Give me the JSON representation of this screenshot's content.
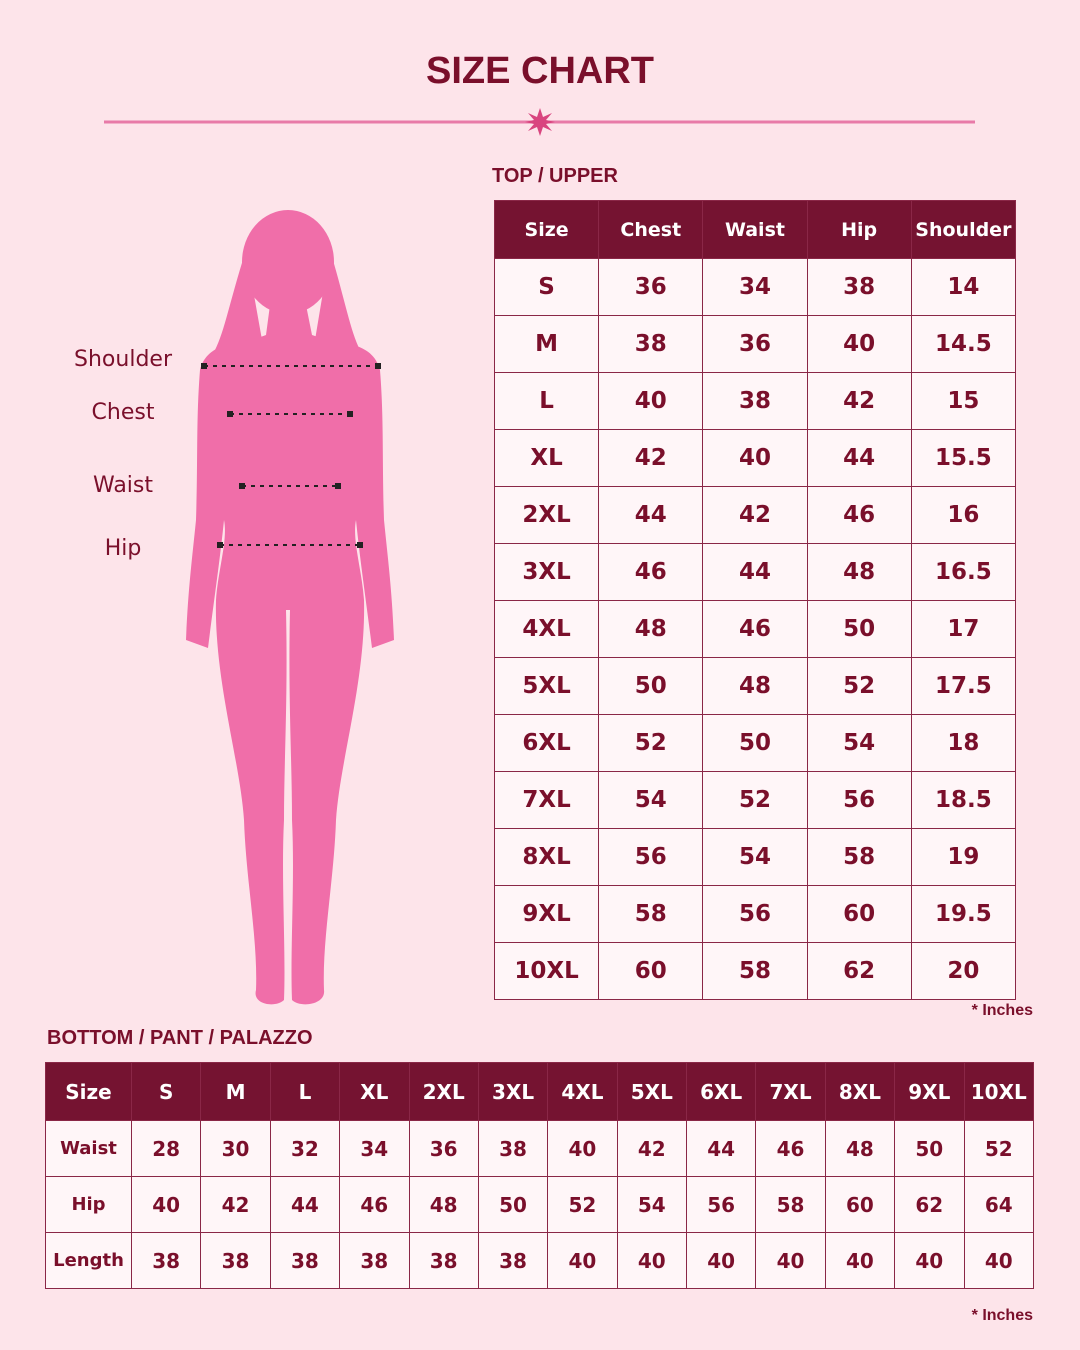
{
  "header": {
    "title": "SIZE CHART"
  },
  "figure": {
    "labels": [
      "Shoulder",
      "Chest",
      "Waist",
      "Hip"
    ]
  },
  "top": {
    "title": "TOP / UPPER",
    "columns": [
      "Size",
      "Chest",
      "Waist",
      "Hip",
      "Shoulder"
    ],
    "rows": [
      [
        "S",
        36,
        34,
        38,
        14
      ],
      [
        "M",
        38,
        36,
        40,
        14.5
      ],
      [
        "L",
        40,
        38,
        42,
        15
      ],
      [
        "XL",
        42,
        40,
        44,
        15.5
      ],
      [
        "2XL",
        44,
        42,
        46,
        16
      ],
      [
        "3XL",
        46,
        44,
        48,
        16.5
      ],
      [
        "4XL",
        48,
        46,
        50,
        17
      ],
      [
        "5XL",
        50,
        48,
        52,
        17.5
      ],
      [
        "6XL",
        52,
        50,
        54,
        18
      ],
      [
        "7XL",
        54,
        52,
        56,
        18.5
      ],
      [
        "8XL",
        56,
        54,
        58,
        19
      ],
      [
        "9XL",
        58,
        56,
        60,
        19.5
      ],
      [
        "10XL",
        60,
        58,
        62,
        20
      ]
    ],
    "note": "* Inches"
  },
  "bottom": {
    "title": "BOTTOM / PANT / PALAZZO",
    "columns": [
      "Size",
      "S",
      "M",
      "L",
      "XL",
      "2XL",
      "3XL",
      "4XL",
      "5XL",
      "6XL",
      "7XL",
      "8XL",
      "9XL",
      "10XL"
    ],
    "rows": [
      [
        "Waist",
        28,
        30,
        32,
        34,
        36,
        38,
        40,
        42,
        44,
        46,
        48,
        50,
        52
      ],
      [
        "Hip",
        40,
        42,
        44,
        46,
        48,
        50,
        52,
        54,
        56,
        58,
        60,
        62,
        64
      ],
      [
        "Length",
        38,
        38,
        38,
        38,
        38,
        38,
        40,
        40,
        40,
        40,
        40,
        40,
        40
      ]
    ],
    "note": "* Inches"
  }
}
